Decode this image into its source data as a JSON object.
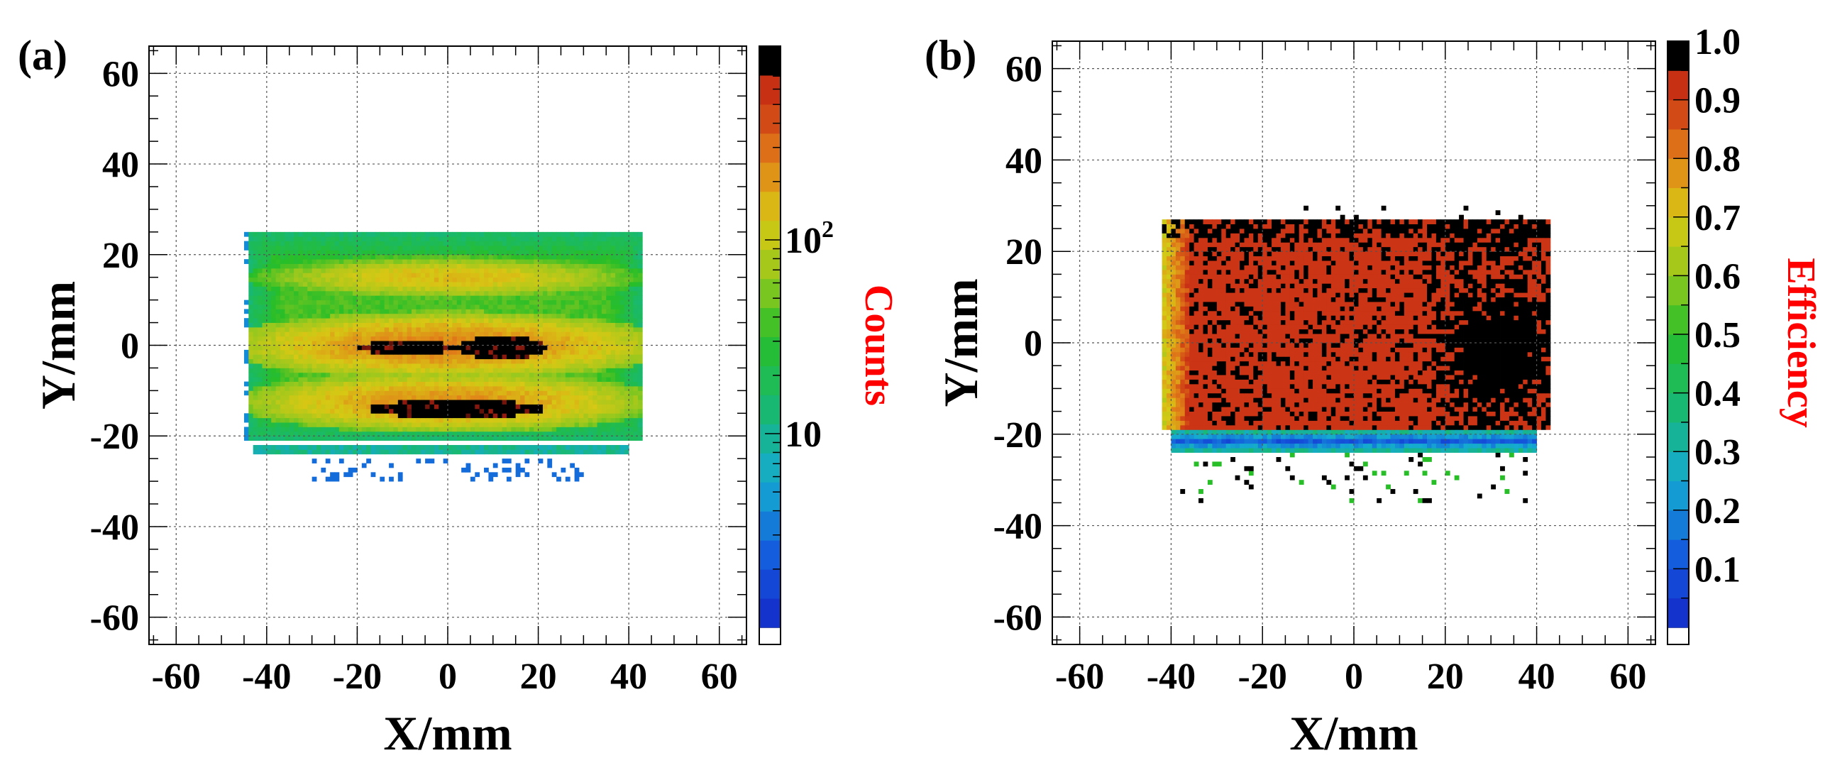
{
  "chart_data": [
    {
      "type": "heatmap",
      "panel_label": "(a)",
      "xlabel": "X/mm",
      "ylabel": "Y/mm",
      "xlim": [
        -66,
        66
      ],
      "ylim": [
        -66,
        66
      ],
      "xticks": [
        -60,
        -40,
        -20,
        0,
        20,
        40,
        60
      ],
      "yticks": [
        -60,
        -40,
        -20,
        0,
        20,
        40,
        60
      ],
      "grid": true,
      "colorbar": {
        "title": "Counts",
        "scale": "log",
        "range": [
          1,
          1000
        ],
        "tick_labels": [
          {
            "value": 100,
            "base": "10",
            "exponent": "2"
          },
          {
            "value": 10,
            "base": "10",
            "exponent": ""
          }
        ]
      },
      "regions": [
        {
          "name": "active-area",
          "x": [
            -44,
            43
          ],
          "y": [
            -21,
            25
          ],
          "level": 0.4
        },
        {
          "name": "upper-band",
          "x": [
            -36,
            36
          ],
          "y": [
            11,
            19
          ],
          "level": 0.72
        },
        {
          "name": "middle-band",
          "x": [
            -40,
            40
          ],
          "y": [
            -6,
            6
          ],
          "level": 0.8
        },
        {
          "name": "lower-band",
          "x": [
            -38,
            38
          ],
          "y": [
            -18,
            -7
          ],
          "level": 0.78
        },
        {
          "name": "hotspot-1",
          "x": [
            -20,
            2
          ],
          "y": [
            -2,
            1
          ],
          "level": 1.0
        },
        {
          "name": "hotspot-2",
          "x": [
            2,
            22
          ],
          "y": [
            -3,
            2
          ],
          "level": 1.0
        },
        {
          "name": "hotspot-3",
          "x": [
            -18,
            22
          ],
          "y": [
            -16,
            -12
          ],
          "level": 1.0
        },
        {
          "name": "bottom-strip",
          "x": [
            -43,
            40
          ],
          "y": [
            -24,
            -22
          ],
          "level": 0.25
        },
        {
          "name": "scatter-tail",
          "x": [
            -30,
            30
          ],
          "y": [
            -30,
            -25
          ],
          "level": 0.15
        }
      ]
    },
    {
      "type": "heatmap",
      "panel_label": "(b)",
      "xlabel": "X/mm",
      "ylabel": "Y/mm",
      "xlim": [
        -66,
        66
      ],
      "ylim": [
        -66,
        66
      ],
      "xticks": [
        -60,
        -40,
        -20,
        0,
        20,
        40,
        60
      ],
      "yticks": [
        -60,
        -40,
        -20,
        0,
        20,
        40,
        60
      ],
      "grid": true,
      "colorbar": {
        "title": "Efficiency",
        "scale": "linear",
        "range": [
          0,
          1.0
        ],
        "tick_labels": [
          "0.1",
          "0.2",
          "0.3",
          "0.4",
          "0.5",
          "0.6",
          "0.7",
          "0.8",
          "0.9",
          "1.0"
        ]
      },
      "regions": [
        {
          "name": "active-area",
          "x": [
            -42,
            43
          ],
          "y": [
            -19,
            27
          ],
          "level": 0.92
        },
        {
          "name": "left-edge-ramp",
          "x": [
            -44,
            -36
          ],
          "y": [
            -19,
            26
          ],
          "level": 0.6
        },
        {
          "name": "full-efficiency-patch",
          "x": [
            17,
            43
          ],
          "y": [
            -18,
            26
          ],
          "level": 1.0
        },
        {
          "name": "bottom-strip",
          "x": [
            -40,
            40
          ],
          "y": [
            -24,
            -19
          ],
          "level": 0.2
        },
        {
          "name": "scatter-tail",
          "x": [
            -38,
            38
          ],
          "y": [
            -35,
            -25
          ],
          "level": 0.9
        }
      ]
    }
  ]
}
